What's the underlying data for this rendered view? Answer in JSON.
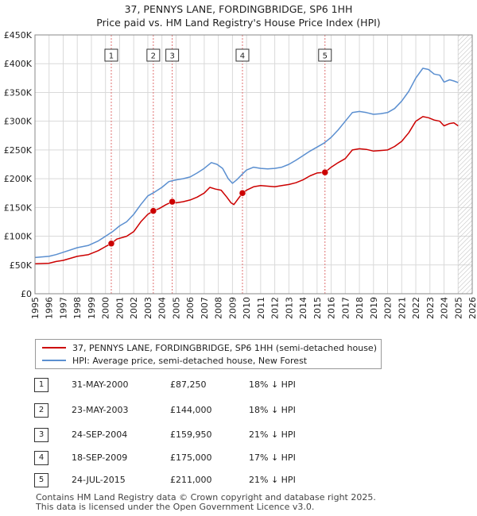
{
  "title_line1": "37, PENNYS LANE, FORDINGBRIDGE, SP6 1HH",
  "title_line2": "Price paid vs. HM Land Registry's House Price Index (HPI)",
  "chart_data": {
    "type": "line",
    "ylim": [
      0,
      450000
    ],
    "xlim": [
      1995,
      2026
    ],
    "y_ticks": [
      {
        "value": 0,
        "label": "£0"
      },
      {
        "value": 50000,
        "label": "£50K"
      },
      {
        "value": 100000,
        "label": "£100K"
      },
      {
        "value": 150000,
        "label": "£150K"
      },
      {
        "value": 200000,
        "label": "£200K"
      },
      {
        "value": 250000,
        "label": "£250K"
      },
      {
        "value": 300000,
        "label": "£300K"
      },
      {
        "value": 350000,
        "label": "£350K"
      },
      {
        "value": 400000,
        "label": "£400K"
      },
      {
        "value": 450000,
        "label": "£450K"
      }
    ],
    "x_ticks": [
      "1995",
      "1996",
      "1997",
      "1998",
      "1999",
      "2000",
      "2001",
      "2002",
      "2003",
      "2004",
      "2005",
      "2006",
      "2007",
      "2008",
      "2009",
      "2010",
      "2011",
      "2012",
      "2013",
      "2014",
      "2015",
      "2016",
      "2017",
      "2018",
      "2019",
      "2020",
      "2021",
      "2022",
      "2023",
      "2024",
      "2025",
      "2026"
    ],
    "grid": true,
    "future_hatch_from": 2025.0,
    "series": [
      {
        "name": "37, PENNYS LANE, FORDINGBRIDGE, SP6 1HH (semi-detached house)",
        "color": "#cc0000",
        "points": [
          [
            1995.0,
            52000
          ],
          [
            1996.0,
            53000
          ],
          [
            1996.5,
            56000
          ],
          [
            1997.0,
            58000
          ],
          [
            1998.0,
            65000
          ],
          [
            1998.8,
            68000
          ],
          [
            1999.5,
            75000
          ],
          [
            2000.0,
            82000
          ],
          [
            2000.41,
            87250
          ],
          [
            2000.8,
            95000
          ],
          [
            2001.5,
            100000
          ],
          [
            2002.0,
            108000
          ],
          [
            2002.5,
            125000
          ],
          [
            2003.0,
            138000
          ],
          [
            2003.39,
            144000
          ],
          [
            2003.8,
            148000
          ],
          [
            2004.3,
            155000
          ],
          [
            2004.73,
            159950
          ],
          [
            2005.0,
            158000
          ],
          [
            2005.5,
            160000
          ],
          [
            2006.0,
            163000
          ],
          [
            2006.5,
            168000
          ],
          [
            2007.0,
            175000
          ],
          [
            2007.4,
            185000
          ],
          [
            2007.8,
            182000
          ],
          [
            2008.2,
            180000
          ],
          [
            2008.6,
            168000
          ],
          [
            2008.9,
            158000
          ],
          [
            2009.1,
            155000
          ],
          [
            2009.4,
            165000
          ],
          [
            2009.71,
            175000
          ],
          [
            2010.0,
            180000
          ],
          [
            2010.5,
            186000
          ],
          [
            2011.0,
            188000
          ],
          [
            2011.5,
            187000
          ],
          [
            2012.0,
            186000
          ],
          [
            2012.5,
            188000
          ],
          [
            2013.0,
            190000
          ],
          [
            2013.5,
            193000
          ],
          [
            2014.0,
            198000
          ],
          [
            2014.5,
            205000
          ],
          [
            2015.0,
            210000
          ],
          [
            2015.56,
            211000
          ],
          [
            2016.0,
            220000
          ],
          [
            2016.5,
            228000
          ],
          [
            2017.0,
            235000
          ],
          [
            2017.5,
            250000
          ],
          [
            2018.0,
            252000
          ],
          [
            2018.5,
            251000
          ],
          [
            2019.0,
            248000
          ],
          [
            2019.5,
            249000
          ],
          [
            2020.0,
            250000
          ],
          [
            2020.5,
            256000
          ],
          [
            2021.0,
            265000
          ],
          [
            2021.5,
            280000
          ],
          [
            2022.0,
            300000
          ],
          [
            2022.5,
            308000
          ],
          [
            2022.9,
            306000
          ],
          [
            2023.3,
            302000
          ],
          [
            2023.7,
            300000
          ],
          [
            2024.0,
            292000
          ],
          [
            2024.4,
            296000
          ],
          [
            2024.7,
            297000
          ],
          [
            2025.0,
            292000
          ]
        ]
      },
      {
        "name": "HPI: Average price, semi-detached house, New Forest",
        "color": "#5b8fd0",
        "points": [
          [
            1995.0,
            63000
          ],
          [
            1996.0,
            65000
          ],
          [
            1996.5,
            68000
          ],
          [
            1997.0,
            72000
          ],
          [
            1998.0,
            80000
          ],
          [
            1998.8,
            84000
          ],
          [
            1999.5,
            92000
          ],
          [
            2000.0,
            100000
          ],
          [
            2000.5,
            108000
          ],
          [
            2001.0,
            118000
          ],
          [
            2001.5,
            125000
          ],
          [
            2002.0,
            138000
          ],
          [
            2002.5,
            155000
          ],
          [
            2003.0,
            170000
          ],
          [
            2003.5,
            177000
          ],
          [
            2004.0,
            185000
          ],
          [
            2004.5,
            195000
          ],
          [
            2005.0,
            198000
          ],
          [
            2005.5,
            200000
          ],
          [
            2006.0,
            203000
          ],
          [
            2006.5,
            210000
          ],
          [
            2007.0,
            218000
          ],
          [
            2007.5,
            228000
          ],
          [
            2007.9,
            225000
          ],
          [
            2008.3,
            218000
          ],
          [
            2008.7,
            200000
          ],
          [
            2009.0,
            192000
          ],
          [
            2009.3,
            198000
          ],
          [
            2009.7,
            208000
          ],
          [
            2010.0,
            215000
          ],
          [
            2010.5,
            220000
          ],
          [
            2011.0,
            218000
          ],
          [
            2011.5,
            217000
          ],
          [
            2012.0,
            218000
          ],
          [
            2012.5,
            220000
          ],
          [
            2013.0,
            225000
          ],
          [
            2013.5,
            232000
          ],
          [
            2014.0,
            240000
          ],
          [
            2014.5,
            248000
          ],
          [
            2015.0,
            255000
          ],
          [
            2015.5,
            262000
          ],
          [
            2016.0,
            272000
          ],
          [
            2016.5,
            285000
          ],
          [
            2017.0,
            300000
          ],
          [
            2017.5,
            315000
          ],
          [
            2018.0,
            317000
          ],
          [
            2018.5,
            315000
          ],
          [
            2019.0,
            312000
          ],
          [
            2019.5,
            313000
          ],
          [
            2020.0,
            315000
          ],
          [
            2020.5,
            322000
          ],
          [
            2021.0,
            335000
          ],
          [
            2021.5,
            352000
          ],
          [
            2022.0,
            375000
          ],
          [
            2022.5,
            392000
          ],
          [
            2022.9,
            390000
          ],
          [
            2023.3,
            382000
          ],
          [
            2023.7,
            380000
          ],
          [
            2024.0,
            368000
          ],
          [
            2024.4,
            372000
          ],
          [
            2024.7,
            370000
          ],
          [
            2025.0,
            367000
          ]
        ]
      }
    ],
    "sales": [
      {
        "n": "1",
        "x": 2000.41,
        "price": 87250
      },
      {
        "n": "2",
        "x": 2003.39,
        "price": 144000
      },
      {
        "n": "3",
        "x": 2004.73,
        "price": 159950
      },
      {
        "n": "4",
        "x": 2009.71,
        "price": 175000
      },
      {
        "n": "5",
        "x": 2015.56,
        "price": 211000
      }
    ]
  },
  "legend": {
    "property_label": "37, PENNYS LANE, FORDINGBRIDGE, SP6 1HH (semi-detached house)",
    "hpi_label": "HPI: Average price, semi-detached house, New Forest"
  },
  "table": [
    {
      "n": "1",
      "date": "31-MAY-2000",
      "price": "£87,250",
      "hpi": "18% ↓ HPI"
    },
    {
      "n": "2",
      "date": "23-MAY-2003",
      "price": "£144,000",
      "hpi": "18% ↓ HPI"
    },
    {
      "n": "3",
      "date": "24-SEP-2004",
      "price": "£159,950",
      "hpi": "21% ↓ HPI"
    },
    {
      "n": "4",
      "date": "18-SEP-2009",
      "price": "£175,000",
      "hpi": "17% ↓ HPI"
    },
    {
      "n": "5",
      "date": "24-JUL-2015",
      "price": "£211,000",
      "hpi": "21% ↓ HPI"
    }
  ],
  "footer_line1": "Contains HM Land Registry data © Crown copyright and database right 2025.",
  "footer_line2": "This data is licensed under the Open Government Licence v3.0."
}
